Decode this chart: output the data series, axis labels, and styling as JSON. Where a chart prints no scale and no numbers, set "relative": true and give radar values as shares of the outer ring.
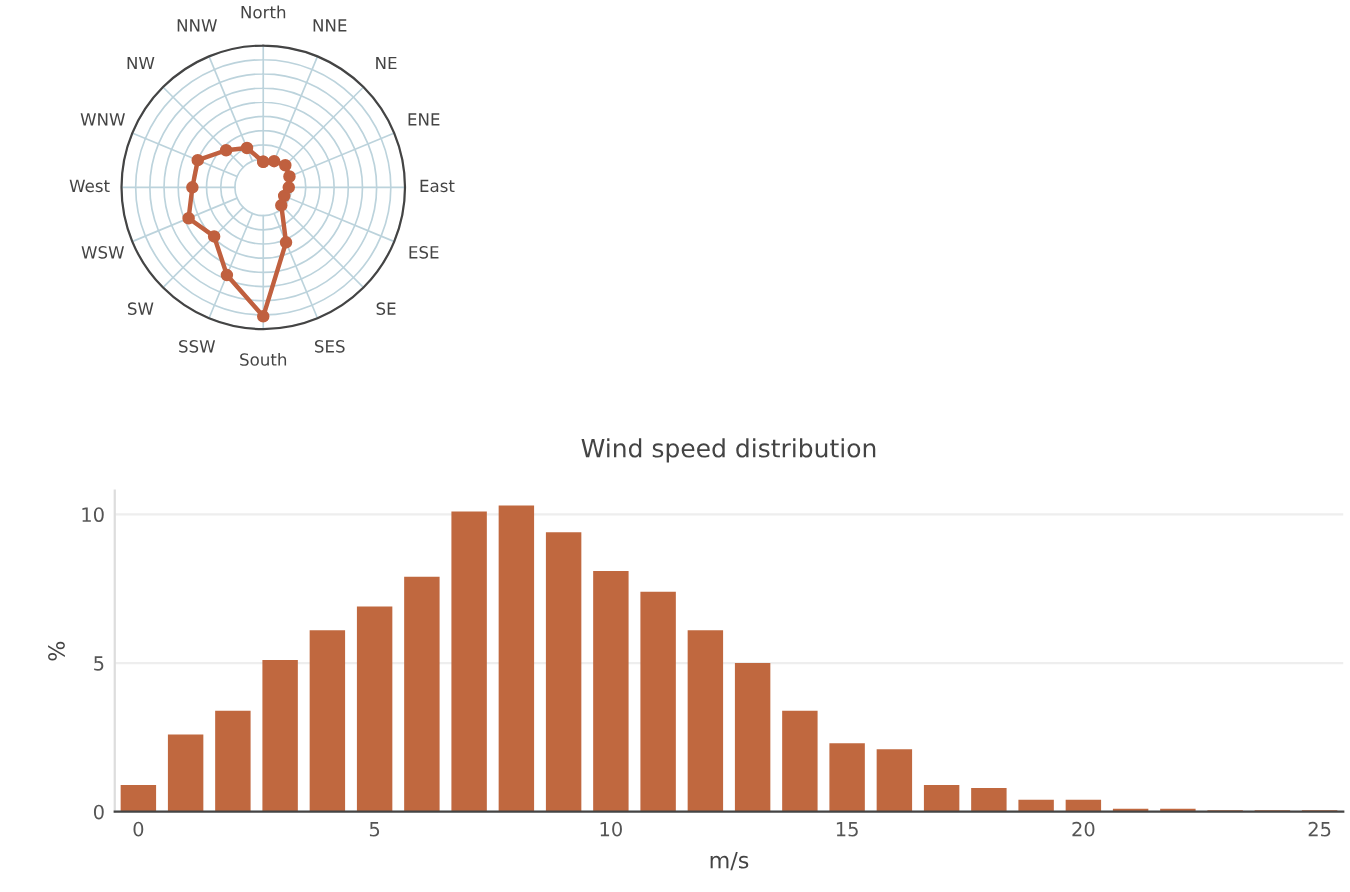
{
  "chart_data": [
    {
      "type": "radar",
      "relative": true,
      "grid": true,
      "marker": "circle",
      "line_style": "solid",
      "categories": [
        "North",
        "NNE",
        "NE",
        "ENE",
        "East",
        "ESE",
        "SE",
        "SES",
        "South",
        "SSW",
        "SW",
        "WSW",
        "West",
        "WNW",
        "NW",
        "NNW"
      ],
      "series": [
        {
          "color": "#c0603f",
          "values": [
            0.18,
            0.2,
            0.22,
            0.2,
            0.18,
            0.16,
            0.18,
            0.42,
            0.91,
            0.67,
            0.49,
            0.57,
            0.5,
            0.5,
            0.37,
            0.3
          ]
        }
      ]
    },
    {
      "type": "bar",
      "title": "Wind speed distribution",
      "xlabel": "m/s",
      "ylabel": "%",
      "grid": "y",
      "x": [
        0,
        1,
        2,
        3,
        4,
        5,
        6,
        7,
        8,
        9,
        10,
        11,
        12,
        13,
        14,
        15,
        16,
        17,
        18,
        19,
        20,
        21,
        22,
        23,
        24,
        25
      ],
      "series": [
        {
          "color": "#c0683f",
          "values": [
            0.9,
            2.6,
            3.4,
            5.1,
            6.1,
            6.9,
            7.9,
            10.1,
            10.3,
            9.4,
            8.1,
            7.4,
            6.1,
            5.0,
            3.4,
            2.3,
            2.1,
            0.9,
            0.8,
            0.4,
            0.4,
            0.1,
            0.1,
            0.05,
            0.05,
            0.05
          ]
        }
      ],
      "xlim": [
        -0.5,
        25.5
      ],
      "ylim": [
        0,
        10.8
      ],
      "xticks": [
        0,
        5,
        10,
        15,
        20,
        25
      ],
      "yticks": [
        0,
        5,
        10
      ]
    }
  ]
}
